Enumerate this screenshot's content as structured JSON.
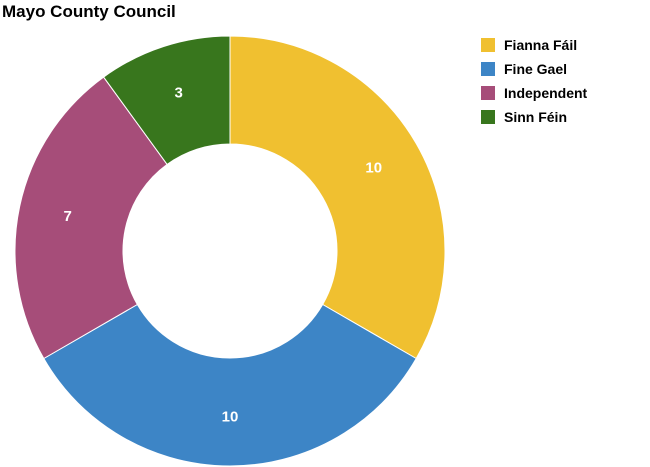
{
  "chart_data": {
    "type": "pie",
    "title": "Mayo County Council",
    "donut": true,
    "legend_position": "top-right",
    "categories": [
      "Fianna Fáil",
      "Fine Gael",
      "Independent",
      "Sinn Féin"
    ],
    "values": [
      10,
      10,
      7,
      3
    ],
    "value_labels": [
      "10",
      "10",
      "7",
      "3"
    ],
    "colors": [
      "#f0c030",
      "#3d85c6",
      "#a64d79",
      "#38761d"
    ],
    "slice_border_color": "#ffffff"
  }
}
